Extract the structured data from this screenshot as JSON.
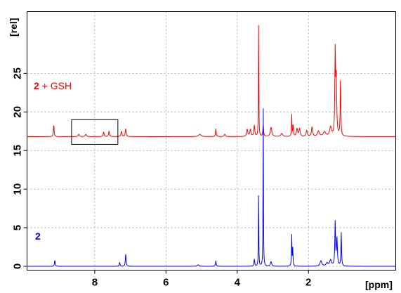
{
  "chart_data": {
    "type": "line",
    "title": "",
    "xlabel": "[ppm]",
    "ylabel": "[rel]",
    "x_reversed": true,
    "xlim": [
      9.9,
      -0.45
    ],
    "ylim": [
      -0.5,
      33
    ],
    "x_ticks": [
      8,
      6,
      4,
      2
    ],
    "x_tick_labels": [
      "8",
      "6",
      "4",
      "2"
    ],
    "y_ticks": [
      0,
      5,
      10,
      15,
      20,
      25
    ],
    "y_tick_labels": [
      "0",
      "5",
      "10",
      "15",
      "20",
      "25"
    ],
    "grid": true,
    "series": [
      {
        "name": "2 + GSH",
        "name_parts": [
          "2",
          " + GSH"
        ],
        "color": "#ff0000",
        "baseline": 16.8,
        "peaks": [
          {
            "ppm": 9.15,
            "h": 1.5,
            "w": 0.012
          },
          {
            "ppm": 8.45,
            "h": 0.3,
            "w": 0.02
          },
          {
            "ppm": 8.25,
            "h": 0.3,
            "w": 0.02
          },
          {
            "ppm": 7.75,
            "h": 0.6,
            "w": 0.015
          },
          {
            "ppm": 7.6,
            "h": 0.7,
            "w": 0.015
          },
          {
            "ppm": 7.25,
            "h": 0.7,
            "w": 0.015
          },
          {
            "ppm": 7.13,
            "h": 1.0,
            "w": 0.015
          },
          {
            "ppm": 5.05,
            "h": 0.3,
            "w": 0.04
          },
          {
            "ppm": 4.6,
            "h": 1.0,
            "w": 0.012
          },
          {
            "ppm": 4.35,
            "h": 0.3,
            "w": 0.02
          },
          {
            "ppm": 3.72,
            "h": 0.9,
            "w": 0.02
          },
          {
            "ppm": 3.63,
            "h": 0.9,
            "w": 0.02
          },
          {
            "ppm": 3.52,
            "h": 1.4,
            "w": 0.015
          },
          {
            "ppm": 3.4,
            "h": 15.5,
            "w": 0.006
          },
          {
            "ppm": 3.27,
            "h": 1.5,
            "w": 0.012
          },
          {
            "ppm": 3.05,
            "h": 1.2,
            "w": 0.025
          },
          {
            "ppm": 2.75,
            "h": 0.4,
            "w": 0.03
          },
          {
            "ppm": 2.47,
            "h": 2.8,
            "w": 0.008
          },
          {
            "ppm": 2.43,
            "h": 1.5,
            "w": 0.01
          },
          {
            "ppm": 2.32,
            "h": 1.0,
            "w": 0.02
          },
          {
            "ppm": 2.25,
            "h": 1.0,
            "w": 0.02
          },
          {
            "ppm": 2.05,
            "h": 0.8,
            "w": 0.02
          },
          {
            "ppm": 1.9,
            "h": 1.2,
            "w": 0.02
          },
          {
            "ppm": 1.72,
            "h": 0.7,
            "w": 0.03
          },
          {
            "ppm": 1.55,
            "h": 0.6,
            "w": 0.04
          },
          {
            "ppm": 1.38,
            "h": 1.2,
            "w": 0.03
          },
          {
            "ppm": 1.25,
            "h": 10.5,
            "w": 0.012
          },
          {
            "ppm": 1.22,
            "h": 7.0,
            "w": 0.015
          },
          {
            "ppm": 1.1,
            "h": 7.5,
            "w": 0.01
          }
        ]
      },
      {
        "name": "2",
        "name_parts": [
          "2",
          ""
        ],
        "color": "#0000ff",
        "baseline": 0,
        "peaks": [
          {
            "ppm": 9.12,
            "h": 0.8,
            "w": 0.012
          },
          {
            "ppm": 7.3,
            "h": 0.5,
            "w": 0.012
          },
          {
            "ppm": 7.13,
            "h": 1.6,
            "w": 0.012
          },
          {
            "ppm": 5.1,
            "h": 0.2,
            "w": 0.03
          },
          {
            "ppm": 4.6,
            "h": 0.7,
            "w": 0.012
          },
          {
            "ppm": 3.52,
            "h": 0.9,
            "w": 0.012
          },
          {
            "ppm": 3.4,
            "h": 9.8,
            "w": 0.006
          },
          {
            "ppm": 3.27,
            "h": 21.5,
            "w": 0.006
          },
          {
            "ppm": 3.05,
            "h": 0.6,
            "w": 0.02
          },
          {
            "ppm": 2.47,
            "h": 4.0,
            "w": 0.008
          },
          {
            "ppm": 2.44,
            "h": 2.2,
            "w": 0.008
          },
          {
            "ppm": 1.65,
            "h": 0.7,
            "w": 0.03
          },
          {
            "ppm": 1.48,
            "h": 0.4,
            "w": 0.03
          },
          {
            "ppm": 1.38,
            "h": 0.8,
            "w": 0.03
          },
          {
            "ppm": 1.25,
            "h": 5.6,
            "w": 0.012
          },
          {
            "ppm": 1.2,
            "h": 3.5,
            "w": 0.015
          },
          {
            "ppm": 1.08,
            "h": 4.3,
            "w": 0.01
          }
        ]
      }
    ],
    "annotations": [
      {
        "type": "box",
        "x_range": [
          8.65,
          7.35
        ],
        "y_range": [
          15.8,
          19.0
        ]
      }
    ]
  }
}
